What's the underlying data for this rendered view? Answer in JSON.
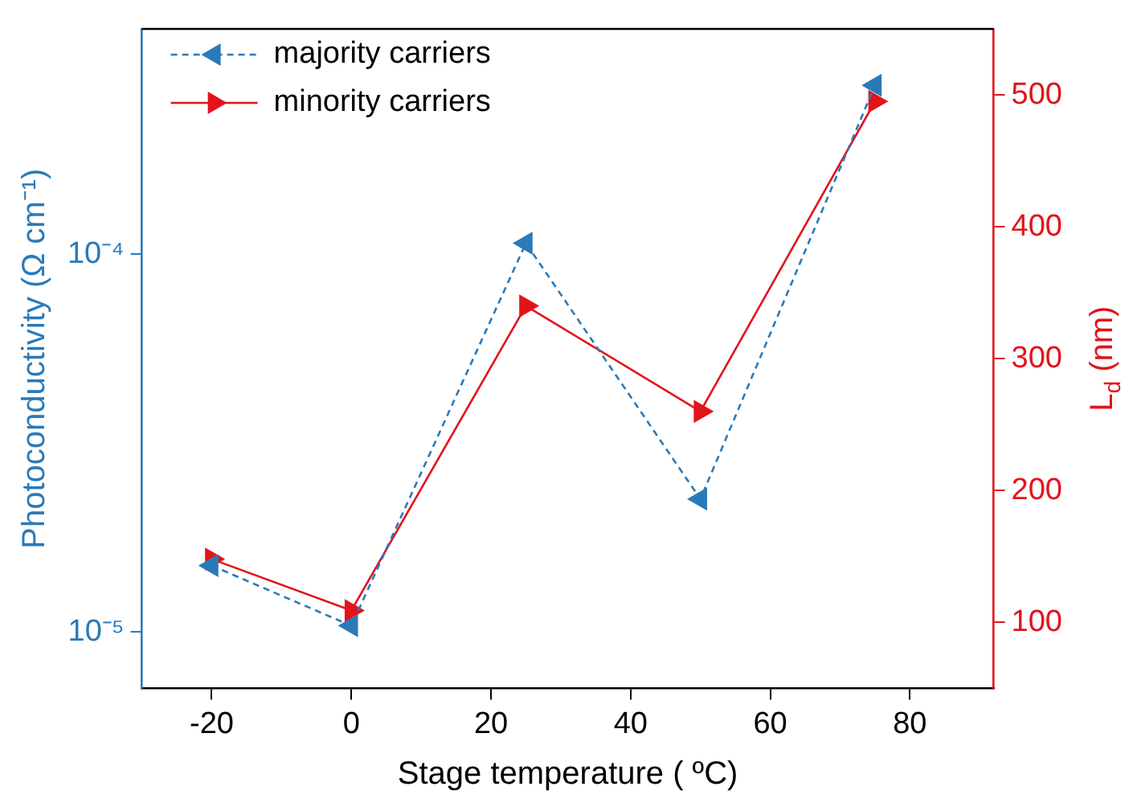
{
  "chart_data": {
    "type": "line",
    "xlabel": "Stage temperature ( ºC)",
    "ylabel": "Photoconductivity (Ω cm⁻¹)",
    "y2label": "L$_{d}$ (nm)",
    "x": [
      -20,
      0,
      25,
      50,
      75
    ],
    "xlim": [
      -30,
      92
    ],
    "xticks": [
      -20,
      0,
      20,
      40,
      60,
      80
    ],
    "log": "y",
    "ylim": [
      7.1e-06,
      0.000395
    ],
    "yticks": [
      {
        "value": 1e-05,
        "label": "10⁻⁵"
      },
      {
        "value": 0.0001,
        "label": "10⁻⁴"
      }
    ],
    "y2lim": [
      50,
      550
    ],
    "y2ticks": [
      100,
      200,
      300,
      400,
      500
    ],
    "grid": false,
    "legend": "top left",
    "marker": "triangle",
    "series": [
      {
        "name": "majority carriers",
        "color": "#2a7ab9",
        "line_style": "dashed",
        "values": [
          1.5e-05,
          1.04e-05,
          0.000107,
          2.25e-05,
          0.00028
        ]
      },
      {
        "name": "minority carriers",
        "color": "#e3131b",
        "line_style": "solid",
        "axis": "y2",
        "values": [
          148,
          109,
          340,
          260,
          495
        ]
      }
    ]
  }
}
